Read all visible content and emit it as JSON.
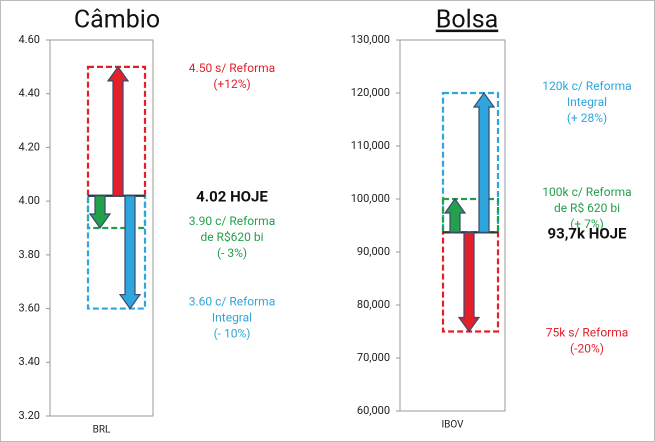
{
  "chart_data": [
    {
      "type": "range",
      "title": "Câmbio",
      "title_underline": false,
      "category": "BRL",
      "ylim": [
        3.2,
        4.6
      ],
      "yticks": [
        {
          "value": 3.2,
          "label": "3.20"
        },
        {
          "value": 3.4,
          "label": "3.40"
        },
        {
          "value": 3.6,
          "label": "3.60"
        },
        {
          "value": 3.8,
          "label": "3.80"
        },
        {
          "value": 4,
          "label": "4.00"
        },
        {
          "value": 4.2,
          "label": "4.20"
        },
        {
          "value": 4.4,
          "label": "4.40"
        },
        {
          "value": 4.6,
          "label": "4.60"
        }
      ],
      "current": {
        "value": 4.02,
        "label": "4.02 HOJE"
      },
      "scenarios": [
        {
          "value": 4.5,
          "color": "#e3202a",
          "lines": [
            "4.50 s/ Reforma",
            "(+12%)"
          ]
        },
        {
          "value": 3.9,
          "color": "#22a04b",
          "lines": [
            "3.90 c/ Reforma",
            "de R$620 bi",
            "(- 3%)"
          ]
        },
        {
          "value": 3.6,
          "color": "#2ea6dd",
          "lines": [
            "3.60 c/ Reforma",
            "Integral",
            "(- 10%)"
          ]
        }
      ]
    },
    {
      "type": "range",
      "title": "Bolsa",
      "title_underline": true,
      "category": "IBOV",
      "ylim": [
        60000,
        130000
      ],
      "yticks": [
        {
          "value": 60000,
          "label": "60,000"
        },
        {
          "value": 70000,
          "label": "70,000"
        },
        {
          "value": 80000,
          "label": "80,000"
        },
        {
          "value": 90000,
          "label": "90,000"
        },
        {
          "value": 100000,
          "label": "100,000"
        },
        {
          "value": 110000,
          "label": "110,000"
        },
        {
          "value": 120000,
          "label": "120,000"
        },
        {
          "value": 130000,
          "label": "130,000"
        }
      ],
      "current": {
        "value": 93700,
        "label": "93,7k HOJE"
      },
      "scenarios": [
        {
          "value": 120000,
          "color": "#2ea6dd",
          "lines": [
            "120k c/ Reforma",
            "Integral",
            "(+ 28%)"
          ]
        },
        {
          "value": 100000,
          "color": "#22a04b",
          "lines": [
            "100k c/ Reforma",
            "de R$ 620 bi",
            "(+ 7%)"
          ]
        },
        {
          "value": 75000,
          "color": "#e3202a",
          "lines": [
            "75k s/ Reforma",
            "(-20%)"
          ]
        }
      ]
    }
  ]
}
